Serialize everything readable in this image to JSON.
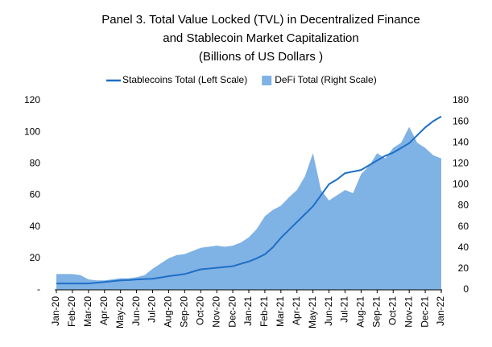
{
  "chart_data": {
    "type": "line-area",
    "title": [
      "Panel 3. Total Value Locked (TVL) in Decentralized Finance",
      "and Stablecoin Market Capitalization",
      "(Billions of US Dollars )"
    ],
    "categories": [
      "Jan-20",
      null,
      "Feb-20",
      null,
      "Mar-20",
      null,
      "Apr-20",
      null,
      "May-20",
      null,
      "Jun-20",
      null,
      "Jul-20",
      null,
      "Aug-20",
      null,
      "Sep-20",
      null,
      "Oct-20",
      null,
      "Nov-20",
      null,
      "Dec-20",
      null,
      "Jan-21",
      null,
      "Feb-21",
      null,
      "Mar-21",
      null,
      "Apr-21",
      null,
      "May-21",
      null,
      "Jun-21",
      null,
      "Jul-21",
      null,
      "Aug-21",
      null,
      "Sep-21",
      null,
      "Oct-21",
      null,
      "Nov-21",
      null,
      "Dec-21",
      null,
      "Jan-22"
    ],
    "series": [
      {
        "name": "Stablecoins Total (Left Scale)",
        "color": "#1f6fc5",
        "kind": "line",
        "values": [
          4,
          4,
          4,
          4,
          4,
          4.5,
          5,
          5.5,
          6,
          6.2,
          6.6,
          6.8,
          7,
          7.8,
          8.7,
          9.3,
          10,
          11.5,
          13,
          13.5,
          14,
          14.5,
          15,
          16.5,
          18,
          20,
          22.5,
          27,
          33,
          38,
          43,
          48,
          53,
          60,
          67,
          70,
          74,
          75,
          76,
          79,
          82,
          85,
          87,
          90,
          93,
          98,
          103,
          107,
          110
        ]
      },
      {
        "name": "DeFi Total (Right Scale)",
        "color": "#7fb2e5",
        "kind": "area",
        "axis": "y2",
        "values": [
          15,
          15,
          15,
          14,
          10,
          9,
          9,
          10,
          11,
          11,
          12,
          14,
          20,
          25,
          30,
          33,
          34,
          37,
          40,
          41,
          42,
          41,
          42,
          45,
          50,
          58,
          70,
          76,
          80,
          88,
          95,
          108,
          130,
          95,
          85,
          90,
          95,
          92,
          110,
          118,
          130,
          125,
          135,
          140,
          155,
          140,
          135,
          128,
          125
        ]
      }
    ],
    "ylim": [
      0,
      120
    ],
    "yticks": [
      {
        "value": 0,
        "label": "-"
      },
      20,
      40,
      60,
      80,
      100,
      120
    ],
    "y2lim": [
      0,
      180
    ],
    "y2ticks": [
      0,
      20,
      40,
      60,
      80,
      100,
      120,
      140,
      160,
      180
    ],
    "grid": false
  }
}
